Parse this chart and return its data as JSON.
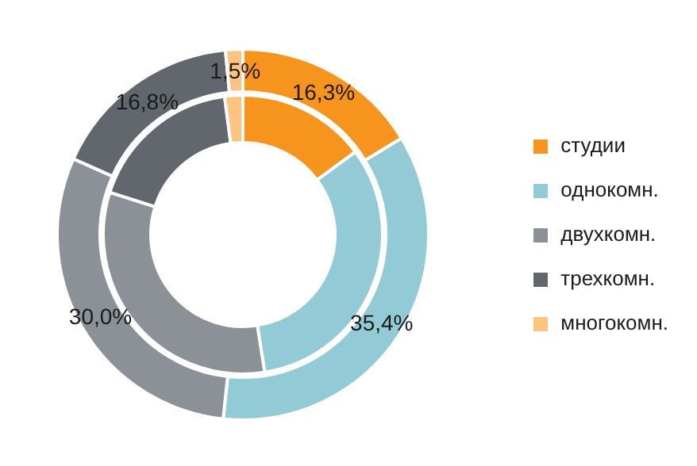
{
  "chart_data": {
    "type": "donut",
    "categories": [
      "студии",
      "однокомн.",
      "двухкомн.",
      "трехкомн.",
      "многокомн."
    ],
    "colors": [
      "#f7941d",
      "#92cbd6",
      "#8b9197",
      "#61676c",
      "#fdc37f"
    ],
    "series": [
      {
        "values": [
          16.3,
          35.4,
          30.0,
          16.8,
          1.5
        ],
        "value_labels": [
          "16,3%",
          "35,4%",
          "30,0%",
          "16,8%",
          "1,5%"
        ]
      },
      {
        "values": [
          14.9,
          32.6,
          32.4,
          18.0,
          2.1
        ]
      }
    ],
    "legend": "right"
  }
}
